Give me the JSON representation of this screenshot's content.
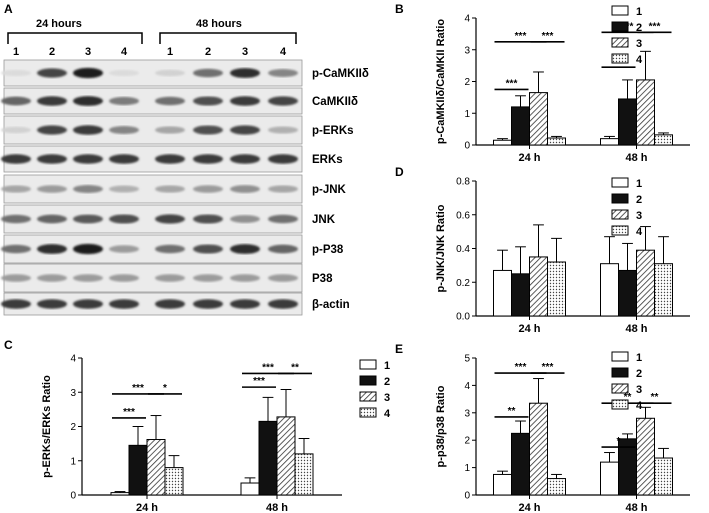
{
  "figure": {
    "panel_letters": [
      "A",
      "B",
      "C",
      "D",
      "E"
    ],
    "blot": {
      "time_labels": [
        "24 hours",
        "48 hours"
      ],
      "lane_labels": [
        "1",
        "2",
        "3",
        "4",
        "1",
        "2",
        "3",
        "4"
      ],
      "rows": [
        {
          "label": "p-CaMKIIδ",
          "lane_intensity": [
            0.05,
            0.75,
            0.95,
            0.05,
            0.1,
            0.55,
            0.85,
            0.45
          ]
        },
        {
          "label": "CaMKIIδ",
          "lane_intensity": [
            0.6,
            0.8,
            0.85,
            0.5,
            0.55,
            0.7,
            0.8,
            0.75
          ]
        },
        {
          "label": "p-ERKs",
          "lane_intensity": [
            0.1,
            0.75,
            0.8,
            0.45,
            0.3,
            0.7,
            0.75,
            0.25
          ]
        },
        {
          "label": "ERKs",
          "lane_intensity": [
            0.8,
            0.8,
            0.8,
            0.8,
            0.8,
            0.8,
            0.8,
            0.8
          ]
        },
        {
          "label": "p-JNK",
          "lane_intensity": [
            0.3,
            0.35,
            0.45,
            0.25,
            0.3,
            0.35,
            0.4,
            0.3
          ]
        },
        {
          "label": "JNK",
          "lane_intensity": [
            0.55,
            0.6,
            0.65,
            0.7,
            0.75,
            0.7,
            0.4,
            0.55
          ]
        },
        {
          "label": "p-P38",
          "lane_intensity": [
            0.55,
            0.85,
            0.95,
            0.35,
            0.55,
            0.7,
            0.85,
            0.6
          ]
        },
        {
          "label": "P38",
          "lane_intensity": [
            0.35,
            0.35,
            0.35,
            0.35,
            0.35,
            0.35,
            0.35,
            0.35
          ]
        },
        {
          "label": "β-actin",
          "lane_intensity": [
            0.8,
            0.8,
            0.8,
            0.8,
            0.8,
            0.8,
            0.8,
            0.8
          ]
        }
      ]
    }
  },
  "chart_data": [
    {
      "panel": "B",
      "type": "bar",
      "ylabel": "p-CaMKIIδ/CaMKII Ratio",
      "categories": [
        "24 h",
        "48 h"
      ],
      "ylim": [
        0,
        4
      ],
      "yticks": [
        0,
        1,
        2,
        3,
        4
      ],
      "legend": [
        "1",
        "2",
        "3",
        "4"
      ],
      "legend_position": "top-right",
      "series": [
        {
          "name": "1",
          "values": [
            0.15,
            0.2
          ],
          "errors": [
            0.05,
            0.07
          ]
        },
        {
          "name": "2",
          "values": [
            1.2,
            1.45
          ],
          "errors": [
            0.35,
            0.6
          ]
        },
        {
          "name": "3",
          "values": [
            1.65,
            2.05
          ],
          "errors": [
            0.65,
            0.9
          ]
        },
        {
          "name": "4",
          "values": [
            0.22,
            0.32
          ],
          "errors": [
            0.05,
            0.06
          ]
        }
      ],
      "significance": [
        {
          "group": 0,
          "from": 0,
          "to": 1,
          "label": "***",
          "y": 1.75
        },
        {
          "group": 0,
          "from": 0,
          "to": 2,
          "label": "***",
          "y": 3.25
        },
        {
          "group": 0,
          "from": 2,
          "to": 3,
          "label": "***",
          "y": 3.25
        },
        {
          "group": 1,
          "from": 0,
          "to": 1,
          "label": "***",
          "y": 2.45
        },
        {
          "group": 1,
          "from": 0,
          "to": 2,
          "label": "***",
          "y": 3.55
        },
        {
          "group": 1,
          "from": 2,
          "to": 3,
          "label": "***",
          "y": 3.55
        }
      ]
    },
    {
      "panel": "D",
      "type": "bar",
      "ylabel": "p-JNK/JNK Ratio",
      "categories": [
        "24 h",
        "48 h"
      ],
      "ylim": [
        0,
        0.8
      ],
      "yticks": [
        0.0,
        0.2,
        0.4,
        0.6,
        0.8
      ],
      "legend": [
        "1",
        "2",
        "3",
        "4"
      ],
      "legend_position": "top-right",
      "series": [
        {
          "name": "1",
          "values": [
            0.27,
            0.31
          ],
          "errors": [
            0.12,
            0.16
          ]
        },
        {
          "name": "2",
          "values": [
            0.25,
            0.27
          ],
          "errors": [
            0.16,
            0.16
          ]
        },
        {
          "name": "3",
          "values": [
            0.35,
            0.39
          ],
          "errors": [
            0.19,
            0.14
          ]
        },
        {
          "name": "4",
          "values": [
            0.32,
            0.31
          ],
          "errors": [
            0.14,
            0.16
          ]
        }
      ],
      "significance": []
    },
    {
      "panel": "C",
      "type": "bar",
      "ylabel": "p-ERKs/ERKs Ratio",
      "categories": [
        "24 h",
        "48 h"
      ],
      "ylim": [
        0,
        4
      ],
      "yticks": [
        0,
        1,
        2,
        3,
        4
      ],
      "legend": [
        "1",
        "2",
        "3",
        "4"
      ],
      "legend_position": "top-right",
      "series": [
        {
          "name": "1",
          "values": [
            0.07,
            0.35
          ],
          "errors": [
            0.03,
            0.15
          ]
        },
        {
          "name": "2",
          "values": [
            1.45,
            2.15
          ],
          "errors": [
            0.55,
            0.7
          ]
        },
        {
          "name": "3",
          "values": [
            1.62,
            2.28
          ],
          "errors": [
            0.7,
            0.8
          ]
        },
        {
          "name": "4",
          "values": [
            0.8,
            1.2
          ],
          "errors": [
            0.35,
            0.45
          ]
        }
      ],
      "significance": [
        {
          "group": 0,
          "from": 0,
          "to": 1,
          "label": "***",
          "y": 2.25
        },
        {
          "group": 0,
          "from": 0,
          "to": 2,
          "label": "***",
          "y": 2.95
        },
        {
          "group": 0,
          "from": 2,
          "to": 3,
          "label": "*",
          "y": 2.95
        },
        {
          "group": 1,
          "from": 0,
          "to": 1,
          "label": "***",
          "y": 3.15
        },
        {
          "group": 1,
          "from": 0,
          "to": 2,
          "label": "***",
          "y": 3.55
        },
        {
          "group": 1,
          "from": 2,
          "to": 3,
          "label": "**",
          "y": 3.55
        }
      ]
    },
    {
      "panel": "E",
      "type": "bar",
      "ylabel": "p-p38/p38 Ratio",
      "categories": [
        "24 h",
        "48 h"
      ],
      "ylim": [
        0,
        5
      ],
      "yticks": [
        0,
        1,
        2,
        3,
        4,
        5
      ],
      "legend": [
        "1",
        "2",
        "3",
        "4"
      ],
      "legend_position": "top-right",
      "series": [
        {
          "name": "1",
          "values": [
            0.75,
            1.2
          ],
          "errors": [
            0.12,
            0.35
          ]
        },
        {
          "name": "2",
          "values": [
            2.25,
            2.05
          ],
          "errors": [
            0.45,
            0.18
          ]
        },
        {
          "name": "3",
          "values": [
            3.35,
            2.8
          ],
          "errors": [
            0.9,
            0.4
          ]
        },
        {
          "name": "4",
          "values": [
            0.6,
            1.35
          ],
          "errors": [
            0.15,
            0.35
          ]
        }
      ],
      "significance": [
        {
          "group": 0,
          "from": 0,
          "to": 1,
          "label": "**",
          "y": 2.85
        },
        {
          "group": 0,
          "from": 0,
          "to": 2,
          "label": "***",
          "y": 4.45
        },
        {
          "group": 0,
          "from": 2,
          "to": 3,
          "label": "***",
          "y": 4.45
        },
        {
          "group": 1,
          "from": 0,
          "to": 1,
          "label": "*",
          "y": 1.75
        },
        {
          "group": 1,
          "from": 0,
          "to": 2,
          "label": "**",
          "y": 3.35
        },
        {
          "group": 1,
          "from": 2,
          "to": 3,
          "label": "**",
          "y": 3.35
        }
      ]
    }
  ]
}
